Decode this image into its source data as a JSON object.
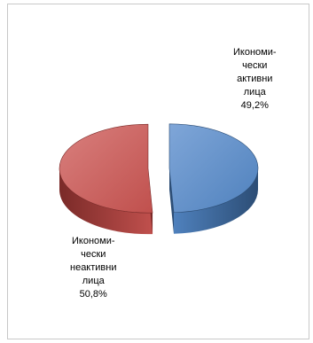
{
  "chart_data": {
    "type": "pie",
    "style": "3d-exploded",
    "slices": [
      {
        "label_lines": [
          "Икономи-",
          "чески",
          "активни",
          "лица"
        ],
        "value_label": "49,2%",
        "value": 49.2,
        "color": "#4f81bd",
        "color_dark": "#2c4d75",
        "color_light": "#7fa6d8"
      },
      {
        "label_lines": [
          "Икономи-",
          "чески",
          "неактивни",
          "лица"
        ],
        "value_label": "50,8%",
        "value": 50.8,
        "color": "#c0504d",
        "color_dark": "#7a2a28",
        "color_light": "#d9807e"
      }
    ],
    "legend": "none",
    "labels": "outside"
  }
}
